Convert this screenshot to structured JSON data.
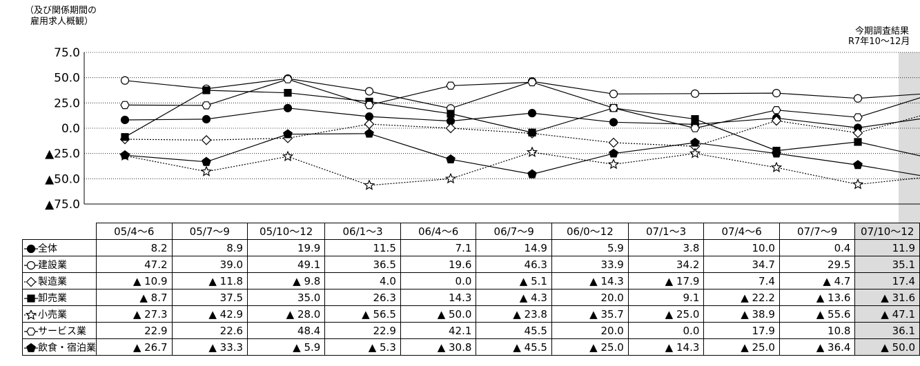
{
  "header": {
    "title_lines": [
      "（及び関係期間の",
      "雇用求人概観）"
    ],
    "current_label_lines": [
      "今期調査結果",
      "R7年10～12月"
    ]
  },
  "chart_data": {
    "type": "line",
    "categories": [
      "05/4～6",
      "05/7～9",
      "05/10～12",
      "06/1～3",
      "06/4～6",
      "06/7～9",
      "06/0～12",
      "07/1～3",
      "07/4～6",
      "07/7～9",
      "07/10～12"
    ],
    "ylim": [
      -75,
      75
    ],
    "yticks": [
      75,
      50,
      25,
      0,
      -25,
      -50,
      -75
    ],
    "ytick_labels": [
      "75.0",
      "50.0",
      "25.0",
      "0.0",
      "▲25.0",
      "▲50.0",
      "▲75.0"
    ],
    "grid": true,
    "highlight_category": "07/10～12",
    "series": [
      {
        "name": "全体",
        "marker": "filled-circle",
        "dash": false,
        "values": [
          8.2,
          8.9,
          19.9,
          11.5,
          7.1,
          14.9,
          5.9,
          3.8,
          10.0,
          0.4,
          11.9
        ],
        "labels": [
          "8.2",
          "8.9",
          "19.9",
          "11.5",
          "7.1",
          "14.9",
          "5.9",
          "3.8",
          "10.0",
          "0.4",
          "11.9"
        ]
      },
      {
        "name": "建設業",
        "marker": "open-circle",
        "dash": false,
        "values": [
          47.2,
          39.0,
          49.1,
          36.5,
          19.6,
          46.3,
          33.9,
          34.2,
          34.7,
          29.5,
          35.1
        ],
        "labels": [
          "47.2",
          "39.0",
          "49.1",
          "36.5",
          "19.6",
          "46.3",
          "33.9",
          "34.2",
          "34.7",
          "29.5",
          "35.1"
        ]
      },
      {
        "name": "製造業",
        "marker": "open-diamond",
        "dash": true,
        "values": [
          -10.9,
          -11.8,
          -9.8,
          4.0,
          0.0,
          -5.1,
          -14.3,
          -17.9,
          7.4,
          -4.7,
          17.4
        ],
        "labels": [
          "▲ 10.9",
          "▲ 11.8",
          "▲ 9.8",
          "4.0",
          "0.0",
          "▲ 5.1",
          "▲ 14.3",
          "▲ 17.9",
          "7.4",
          "▲ 4.7",
          "17.4"
        ]
      },
      {
        "name": "卸売業",
        "marker": "filled-square",
        "dash": false,
        "values": [
          -8.7,
          37.5,
          35.0,
          26.3,
          14.3,
          -4.3,
          20.0,
          9.1,
          -22.2,
          -13.6,
          -31.6
        ],
        "labels": [
          "▲ 8.7",
          "37.5",
          "35.0",
          "26.3",
          "14.3",
          "▲ 4.3",
          "20.0",
          "9.1",
          "▲ 22.2",
          "▲ 13.6",
          "▲ 31.6"
        ]
      },
      {
        "name": "小売業",
        "marker": "open-star",
        "dash": true,
        "values": [
          -27.3,
          -42.9,
          -28.0,
          -56.5,
          -50.0,
          -23.8,
          -35.7,
          -25.0,
          -38.9,
          -55.6,
          -47.1
        ],
        "labels": [
          "▲ 27.3",
          "▲ 42.9",
          "▲ 28.0",
          "▲ 56.5",
          "▲ 50.0",
          "▲ 23.8",
          "▲ 35.7",
          "▲ 25.0",
          "▲ 38.9",
          "▲ 55.6",
          "▲ 47.1"
        ]
      },
      {
        "name": "サービス業",
        "marker": "open-hexagon",
        "dash": false,
        "values": [
          22.9,
          22.6,
          48.4,
          22.9,
          42.1,
          45.5,
          20.0,
          0.0,
          17.9,
          10.8,
          36.1
        ],
        "labels": [
          "22.9",
          "22.6",
          "48.4",
          "22.9",
          "42.1",
          "45.5",
          "20.0",
          "0.0",
          "17.9",
          "10.8",
          "36.1"
        ]
      },
      {
        "name": "飲食・宿泊業",
        "marker": "filled-pentagon",
        "dash": false,
        "values": [
          -26.7,
          -33.3,
          -5.9,
          -5.3,
          -30.8,
          -45.5,
          -25.0,
          -14.3,
          -25.0,
          -36.4,
          -50.0
        ],
        "labels": [
          "▲ 26.7",
          "▲ 33.3",
          "▲ 5.9",
          "▲ 5.3",
          "▲ 30.8",
          "▲ 45.5",
          "▲ 25.0",
          "▲ 14.3",
          "▲ 25.0",
          "▲ 36.4",
          "▲ 50.0"
        ]
      }
    ]
  }
}
